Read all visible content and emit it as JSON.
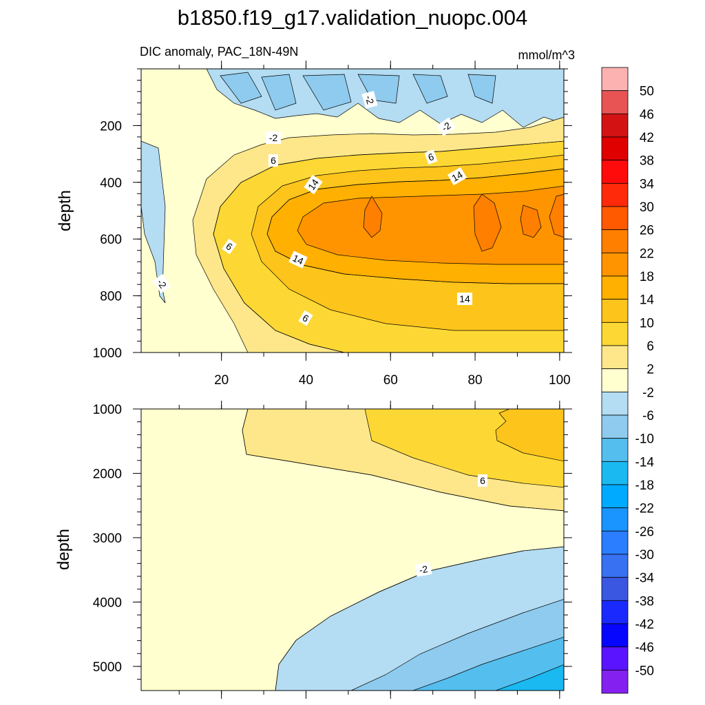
{
  "chart_data": {
    "type": "contour",
    "title": "b1850.f19_g17.validation_nuopc.004",
    "subtitle_left": "DIC anomaly, PAC_18N-49N",
    "subtitle_right": "mmol/m^3",
    "x": {
      "range": [
        1,
        101
      ],
      "ticks": [
        20,
        40,
        60,
        80,
        100
      ],
      "tick_labels": [
        "20",
        "40",
        "60",
        "80",
        "100"
      ]
    },
    "panels": [
      {
        "name": "upper",
        "ylabel": "depth",
        "ylim": [
          0,
          1000
        ],
        "inverted": true,
        "y_ticks": [
          200,
          400,
          600,
          800,
          1000
        ],
        "y_tick_labels": [
          "200",
          "400",
          "600",
          "800",
          "1000"
        ],
        "contour_labels": [
          "-2",
          "-2",
          "-2",
          "6",
          "6",
          "14",
          "14",
          "6",
          "14",
          "14",
          "6",
          "-2"
        ]
      },
      {
        "name": "lower",
        "ylabel": "depth",
        "ylim": [
          1000,
          5375
        ],
        "inverted": true,
        "y_ticks": [
          1000,
          2000,
          3000,
          4000,
          5000
        ],
        "y_tick_labels": [
          "1000",
          "2000",
          "3000",
          "4000",
          "5000"
        ],
        "contour_labels": [
          "6",
          "-2"
        ]
      }
    ],
    "colorbar": {
      "labels": [
        "50",
        "46",
        "42",
        "38",
        "34",
        "30",
        "26",
        "22",
        "18",
        "14",
        "10",
        "6",
        "2",
        "-2",
        "-6",
        "-10",
        "-14",
        "-18",
        "-22",
        "-26",
        "-30",
        "-34",
        "-38",
        "-42",
        "-46",
        "-50"
      ],
      "colors": [
        "#fdb2b2",
        "#e85454",
        "#d31313",
        "#e00000",
        "#ff0b0b",
        "#ff2a0a",
        "#ff5a00",
        "#ff7f00",
        "#ff9400",
        "#ffb000",
        "#fdc41c",
        "#fdd835",
        "#fde78a",
        "#ffffcf",
        "#b4dcf2",
        "#8ecbee",
        "#54bfef",
        "#1ab9f2",
        "#00aaff",
        "#1a94ff",
        "#2a7eff",
        "#3871f1",
        "#3a57e2",
        "#1a2aff",
        "#0606ff",
        "#5a14ff",
        "#8421f0"
      ]
    },
    "grid": false,
    "legend": "right colorbar"
  }
}
